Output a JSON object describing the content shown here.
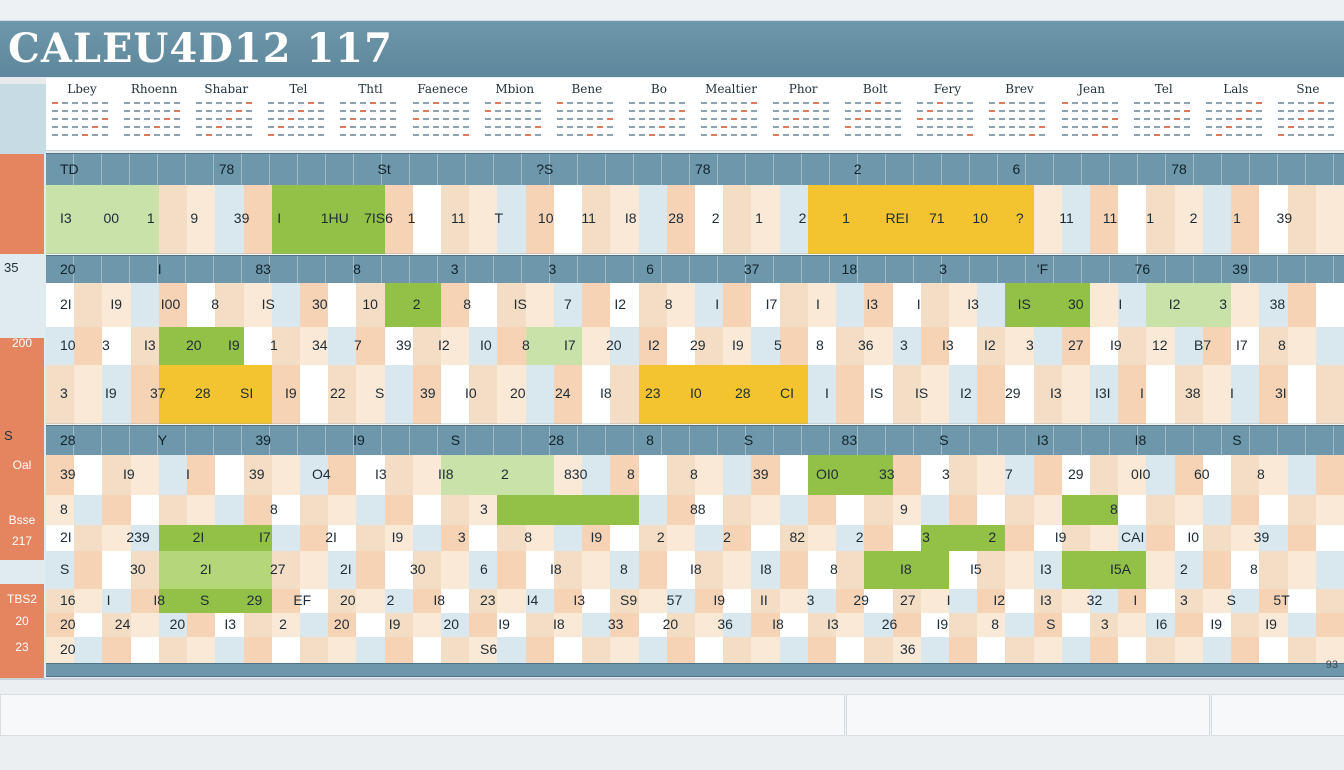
{
  "title": "CALEU4D12 117",
  "months": [
    "Lbey",
    "Rhoenn",
    "Shabar",
    "Tel",
    "Thtl",
    "Faenece",
    "Mbion",
    "Bene",
    "Bo",
    "Mealtier",
    "Phor",
    "Bolt",
    "Fery",
    "Brev",
    "Jean",
    "Tel",
    "Lals",
    "Sne"
  ],
  "week_labels": [
    "35",
    "S"
  ],
  "side_labels": [
    "200",
    "Oal",
    "Bsse",
    "217",
    "TBS2",
    "20",
    "23"
  ],
  "band1_numbers": [
    "TD",
    "78",
    "St",
    "?S",
    "78",
    "2",
    "6",
    "78"
  ],
  "row1_numbers": [
    "I3",
    "00",
    "1",
    "9",
    "39",
    "I",
    "1HU",
    "7IS6",
    "1",
    "11",
    "T",
    "10",
    "11",
    "I8",
    "28",
    "2",
    "1",
    "2",
    "1",
    "REI",
    "71",
    "10",
    "?",
    "11",
    "11",
    "1",
    "2",
    "1",
    "39"
  ],
  "band2_numbers": [
    "20",
    "I",
    "83",
    "8",
    "3",
    "3",
    "6",
    "37",
    "18",
    "3",
    "'F",
    "76",
    "39"
  ],
  "row2_numbers": [
    "2I",
    "I9",
    "I00",
    "8",
    "IS",
    "30",
    "10",
    "2",
    "8",
    "IS",
    "7",
    "I2",
    "8",
    "I",
    "I7",
    "I",
    "I3",
    "I",
    "I3",
    "IS",
    "30",
    "I",
    "I2",
    "3",
    "38"
  ],
  "row3_numbers": [
    "10",
    "3",
    "I3",
    "20",
    "I9",
    "1",
    "34",
    "7",
    "39",
    "I2",
    "I0",
    "8",
    "I7",
    "20",
    "I2",
    "29",
    "I9",
    "5",
    "8",
    "36",
    "3",
    "I3",
    "I2",
    "3",
    "27",
    "I9",
    "12",
    "B7",
    "I7",
    "8"
  ],
  "row4_numbers": [
    "3",
    "I9",
    "37",
    "28",
    "SI",
    "I9",
    "22",
    "S",
    "39",
    "I0",
    "20",
    "24",
    "I8",
    "23",
    "I0",
    "28",
    "CI",
    "I",
    "IS",
    "IS",
    "I2",
    "29",
    "I3",
    "I3I",
    "I",
    "38",
    "I",
    "3I"
  ],
  "band3_numbers": [
    "28",
    "Y",
    "39",
    "I9",
    "S",
    "28",
    "8",
    "S",
    "83",
    "S",
    "I3",
    "I8",
    "S"
  ],
  "row5_numbers": [
    "39",
    "I9",
    "I",
    "39",
    "O4",
    "I3",
    "II8",
    "2",
    "830",
    "8",
    "8",
    "39",
    "OI0",
    "33",
    "3",
    "7",
    "29",
    "0I0",
    "60",
    "8"
  ],
  "row6_numbers": [
    "8",
    "8",
    "3",
    "88",
    "9",
    "8"
  ],
  "row7_numbers": [
    "2I",
    "239",
    "2I",
    "I7",
    "2I",
    "I9",
    "3",
    "8",
    "I9",
    "2",
    "2",
    "82",
    "2",
    "3",
    "2",
    "I9",
    "CAI",
    "I0",
    "39"
  ],
  "row8_numbers": [
    "S",
    "30",
    "2I",
    "27",
    "2I",
    "30",
    "6",
    "I8",
    "8",
    "I8",
    "I8",
    "8",
    "I8",
    "I5",
    "I3",
    "I5A",
    "2",
    "8"
  ],
  "row9_numbers": [
    "16",
    "I",
    "I8",
    "S",
    "29",
    "EF",
    "20",
    "2",
    "I8",
    "23",
    "I4",
    "I3",
    "S9",
    "57",
    "I9",
    "II",
    "3",
    "29",
    "27",
    "I",
    "I2",
    "I3",
    "32",
    "I",
    "3",
    "S",
    "5T"
  ],
  "row10_numbers": [
    "20",
    "24",
    "20",
    "I3",
    "2",
    "20",
    "I9",
    "20",
    "I9",
    "I8",
    "33",
    "20",
    "36",
    "I8",
    "I3",
    "26",
    "I9",
    "8",
    "S",
    "3",
    "I6",
    "I9",
    "I9"
  ],
  "row11_numbers": [
    "20",
    "S6",
    "36"
  ],
  "page_number": "93",
  "colors": {
    "accent_teal": "#6f97ab",
    "accent_orange": "#e5855f",
    "highlight_yellow": "#f4c430",
    "highlight_green": "#93c047",
    "peach": "#f7d3b5",
    "pale_blue": "#d9e8ef"
  }
}
